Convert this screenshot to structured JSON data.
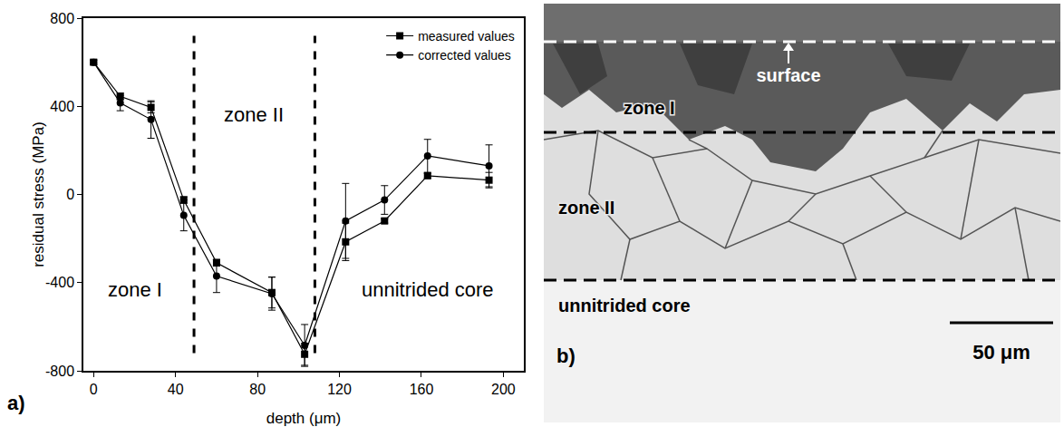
{
  "chart_data": {
    "type": "line",
    "x_label": "depth (μm)",
    "y_label": "residual stress (MPa)",
    "x": [
      0,
      13,
      28,
      44,
      60,
      87,
      103,
      123,
      142,
      163,
      193
    ],
    "xlim": [
      -5,
      210
    ],
    "xticks": [
      0,
      40,
      80,
      120,
      160,
      200
    ],
    "ylim": [
      -800,
      800
    ],
    "yticks": [
      -800,
      -400,
      0,
      400,
      800
    ],
    "grid": false,
    "legend": "top right",
    "series": [
      {
        "name": "measured values",
        "color": "#000000",
        "marker": "square",
        "line_style": "solid",
        "values": [
          600,
          445,
          395,
          -25,
          -310,
          -445,
          -725,
          -215,
          -120,
          85,
          65
        ],
        "errors": [
          10,
          15,
          25,
          15,
          15,
          70,
          50,
          85,
          10,
          10,
          35
        ]
      },
      {
        "name": "corrected values",
        "color": "#000000",
        "marker": "circle",
        "line_style": "solid",
        "values": [
          600,
          415,
          340,
          -95,
          -370,
          -450,
          -685,
          -120,
          -25,
          175,
          130
        ],
        "errors": [
          10,
          35,
          85,
          70,
          75,
          75,
          95,
          170,
          65,
          75,
          95
        ]
      }
    ],
    "zone_boundaries": [
      49,
      108
    ],
    "annotations": [
      {
        "text": "zone I",
        "x": 20,
        "y": -430
      },
      {
        "text": "zone II",
        "x": 78,
        "y": 360
      },
      {
        "text": "unnitrided core",
        "x": 163,
        "y": -430
      }
    ],
    "panel_label": "a)"
  },
  "micrograph": {
    "panel_label": "b)",
    "labels": {
      "surface": "surface",
      "zone_1": "zone I",
      "zone_2": "zone II",
      "core": "unnitrided core"
    },
    "scale_bar": "50 μm"
  }
}
